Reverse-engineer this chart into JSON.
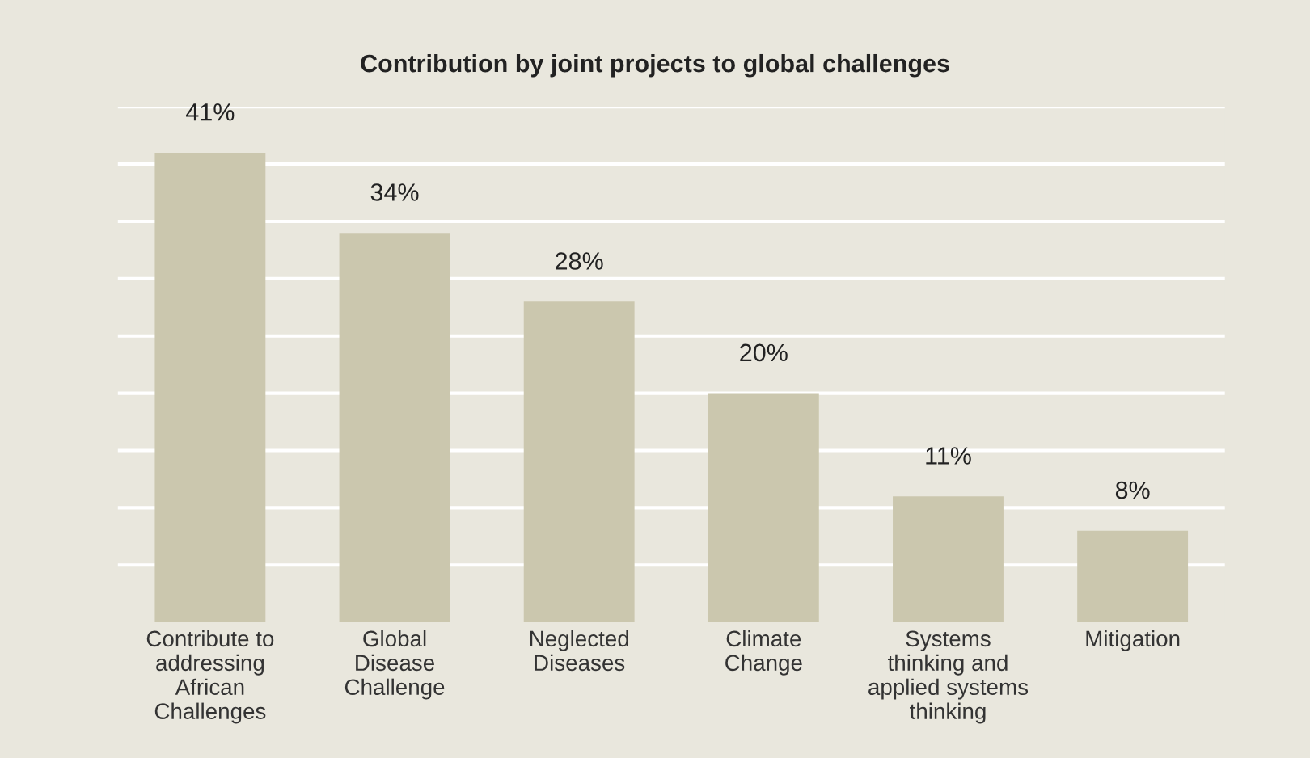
{
  "chart_data": {
    "type": "bar",
    "title": "Contribution by joint projects to global challenges",
    "categories": [
      "Contribute to\naddressing\nAfrican\nChallenges",
      "Global\nDisease\nChallenge",
      "Neglected\nDiseases",
      "Climate\nChange",
      "Systems\nthinking and\napplied systems\nthinking",
      "Mitigation"
    ],
    "values": [
      41,
      34,
      28,
      20,
      11,
      8
    ],
    "value_labels": [
      "41%",
      "34%",
      "28%",
      "20%",
      "11%",
      "8%"
    ],
    "color": "#cbc7ae",
    "ylim": [
      0,
      45
    ],
    "yticks": [
      {
        "value": 5,
        "label": null
      },
      {
        "value": 10,
        "label": null
      },
      {
        "value": 15,
        "label": null
      },
      {
        "value": 20,
        "label": null
      },
      {
        "value": 25,
        "label": null
      },
      {
        "value": 30,
        "label": null
      },
      {
        "value": 35,
        "label": null
      },
      {
        "value": 40,
        "label": null
      },
      {
        "value": 45,
        "label": null
      }
    ],
    "tick_labels": "x",
    "grid": "y"
  }
}
